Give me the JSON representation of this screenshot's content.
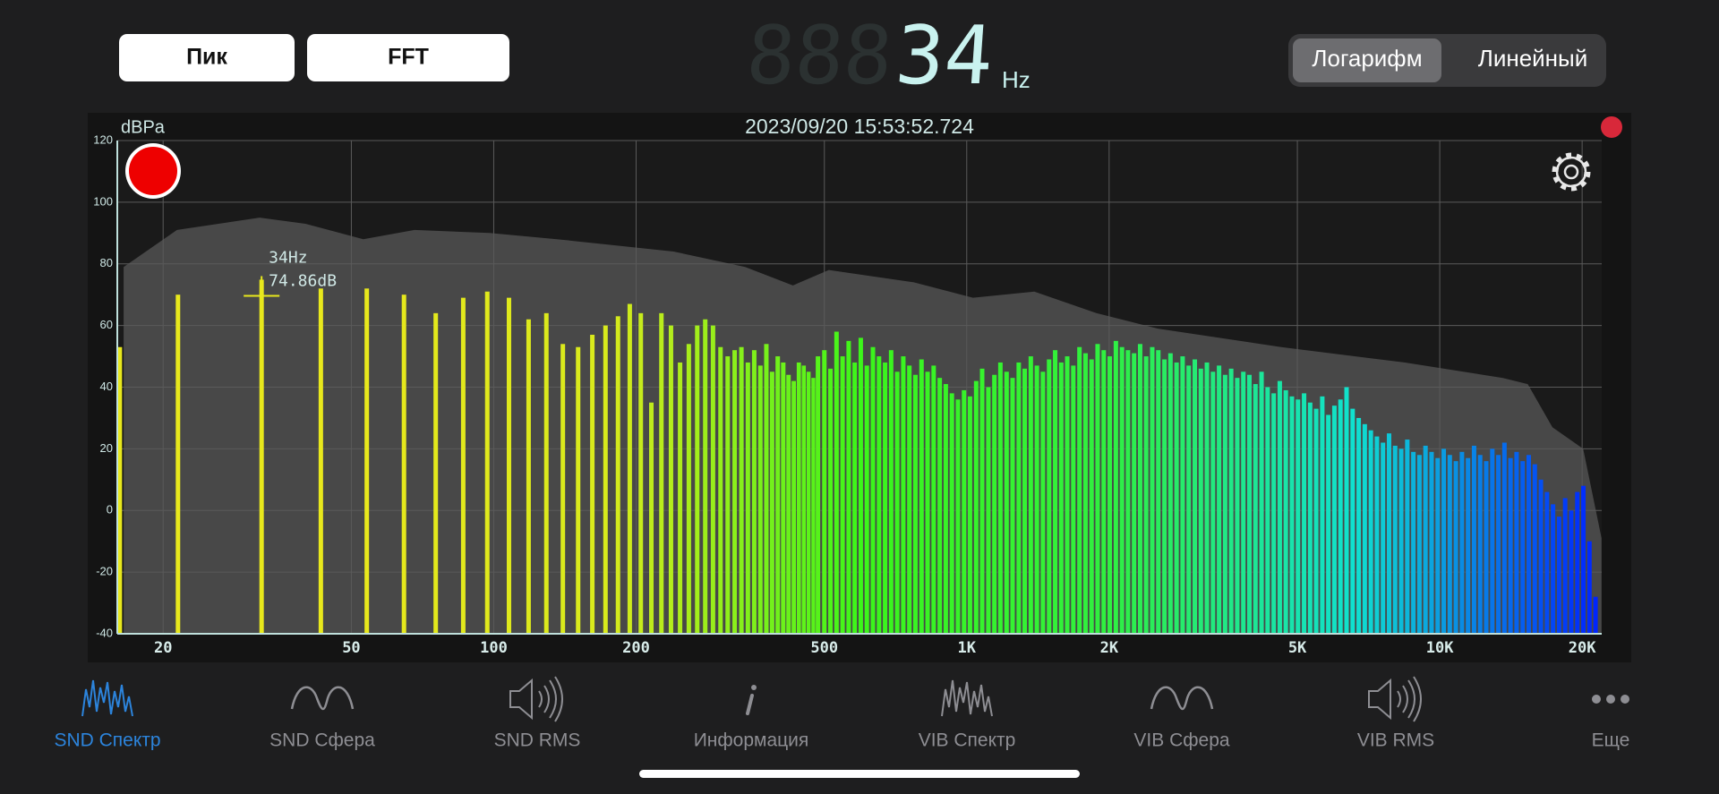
{
  "toolbar": {
    "buttons": [
      "Пик",
      "FFT"
    ],
    "display_ghost": "888",
    "display_value": "34",
    "display_unit": "Hz",
    "scale_toggle": [
      "Логарифм",
      "Линейный"
    ],
    "scale_active": 0
  },
  "chart_data": {
    "type": "bar",
    "title": "2023/09/20 15:53:52.724",
    "y_label": "dBPa",
    "annotations": [
      "34Hz",
      "74.86dB"
    ],
    "x_log": true,
    "grid": true,
    "xlim": [
      16,
      22000
    ],
    "xticks": [
      20,
      50,
      100,
      200,
      500,
      {
        "value": 1000,
        "label": "1K"
      },
      {
        "value": 2000,
        "label": "2K"
      },
      {
        "value": 5000,
        "label": "5K"
      },
      {
        "value": 10000,
        "label": "10K"
      },
      {
        "value": 20000,
        "label": "20K"
      }
    ],
    "ylim": [
      -40,
      120
    ],
    "yticks": [
      -40,
      -20,
      0,
      20,
      40,
      60,
      80,
      100,
      120
    ],
    "color_stops": [
      "#e8e81c",
      "#e8e81c",
      "#d8ea1c",
      "#3cf51a",
      "#30f040",
      "#10e0d0",
      "#0020ff"
    ],
    "x": [
      16.2,
      21.5,
      32.3,
      43.1,
      53.9,
      64.6,
      75.4,
      86.2,
      96.9,
      107.7,
      118.5,
      129.2,
      140,
      150.8,
      161.6,
      172.3,
      183.1,
      193.9,
      204.6,
      215.4,
      226.2,
      237,
      247.7,
      258.5,
      269.3,
      280,
      290.8,
      301.6,
      312.3,
      323.1,
      333.9,
      344.6,
      355.4,
      366.2,
      377,
      387.7,
      398.5,
      409.3,
      420,
      430.8,
      441.6,
      452.4,
      463.1,
      473.9,
      484.7,
      500,
      515,
      530.5,
      546.4,
      562.8,
      579.6,
      597,
      614.9,
      633.4,
      652.4,
      672,
      692.1,
      712.9,
      734.3,
      756.3,
      779,
      802.4,
      826.4,
      851.2,
      876.8,
      903.1,
      930.2,
      958.1,
      986.8,
      1016,
      1047,
      1078,
      1111,
      1144,
      1178,
      1214,
      1250,
      1288,
      1326,
      1366,
      1407,
      1449,
      1493,
      1538,
      1584,
      1631,
      1680,
      1731,
      1783,
      1836,
      1891,
      1948,
      2006,
      2067,
      2129,
      2192,
      2258,
      2326,
      2395,
      2467,
      2541,
      2618,
      2696,
      2777,
      2860,
      2946,
      3035,
      3126,
      3219,
      3316,
      3415,
      3518,
      3623,
      3732,
      3844,
      3959,
      4078,
      4200,
      4326,
      4456,
      4590,
      4727,
      4869,
      5015,
      5166,
      5321,
      5480,
      5645,
      5814,
      5988,
      6168,
      6353,
      6544,
      6740,
      6942,
      7151,
      7365,
      7586,
      7814,
      8048,
      8290,
      8539,
      8795,
      9059,
      9330,
      9610,
      9899,
      10196,
      10501,
      10817,
      11141,
      11475,
      11819,
      12174,
      12539,
      12916,
      13303,
      13702,
      14113,
      14537,
      14973,
      15422,
      15885,
      16361,
      16852,
      17358,
      17879,
      18415,
      18967,
      19536,
      20122,
      20726,
      21348
    ],
    "values": [
      53,
      70,
      74.86,
      72,
      72,
      70,
      64,
      69,
      71,
      69,
      62,
      64,
      54,
      53,
      57,
      60,
      63,
      67,
      64,
      35,
      64,
      60,
      48,
      54,
      60,
      62,
      60,
      53,
      50,
      52,
      53,
      48,
      52,
      47,
      54,
      45,
      50,
      48,
      44,
      42,
      48,
      47,
      45,
      43,
      50,
      52,
      46,
      58,
      50,
      55,
      48,
      56,
      47,
      53,
      50,
      48,
      52,
      45,
      50,
      47,
      44,
      49,
      45,
      47,
      43,
      41,
      38,
      36,
      39,
      37,
      42,
      46,
      40,
      44,
      48,
      45,
      43,
      48,
      46,
      50,
      47,
      45,
      49,
      52,
      48,
      50,
      47,
      53,
      51,
      49,
      54,
      52,
      50,
      55,
      53,
      52,
      51,
      54,
      50,
      53,
      52,
      49,
      51,
      48,
      50,
      47,
      49,
      46,
      48,
      45,
      47,
      44,
      46,
      43,
      45,
      44,
      41,
      45,
      40,
      38,
      42,
      39,
      37,
      36,
      38,
      35,
      33,
      37,
      31,
      34,
      36,
      40,
      33,
      30,
      28,
      26,
      24,
      22,
      25,
      21,
      20,
      23,
      19,
      18,
      21,
      19,
      17,
      20,
      18,
      16,
      19,
      17,
      21,
      18,
      16,
      20,
      18,
      22,
      17,
      19,
      16,
      18,
      15,
      10,
      6,
      2,
      -2,
      4,
      0,
      6,
      8,
      -10,
      -28
    ],
    "envelope": {
      "color": "#484848",
      "x": [
        16.5,
        21.4,
        32,
        40,
        53,
        68,
        98,
        136,
        240,
        340,
        429,
        511,
        773,
        1031,
        1390,
        1879,
        2536,
        4624,
        8414,
        13600,
        15350,
        17300,
        20100,
        21980
      ],
      "values": [
        79,
        91,
        95,
        93,
        88,
        91,
        90,
        88,
        84,
        79,
        73,
        78,
        74,
        69,
        71,
        64,
        59,
        53,
        48,
        43,
        41,
        27,
        20,
        -9
      ]
    }
  },
  "tabs": [
    "SND Спектр",
    "SND Сфера",
    "SND RMS",
    "Информация",
    "VIB Спектр",
    "VIB Сфера",
    "VIB RMS",
    "Еще"
  ],
  "active_tab": 0
}
